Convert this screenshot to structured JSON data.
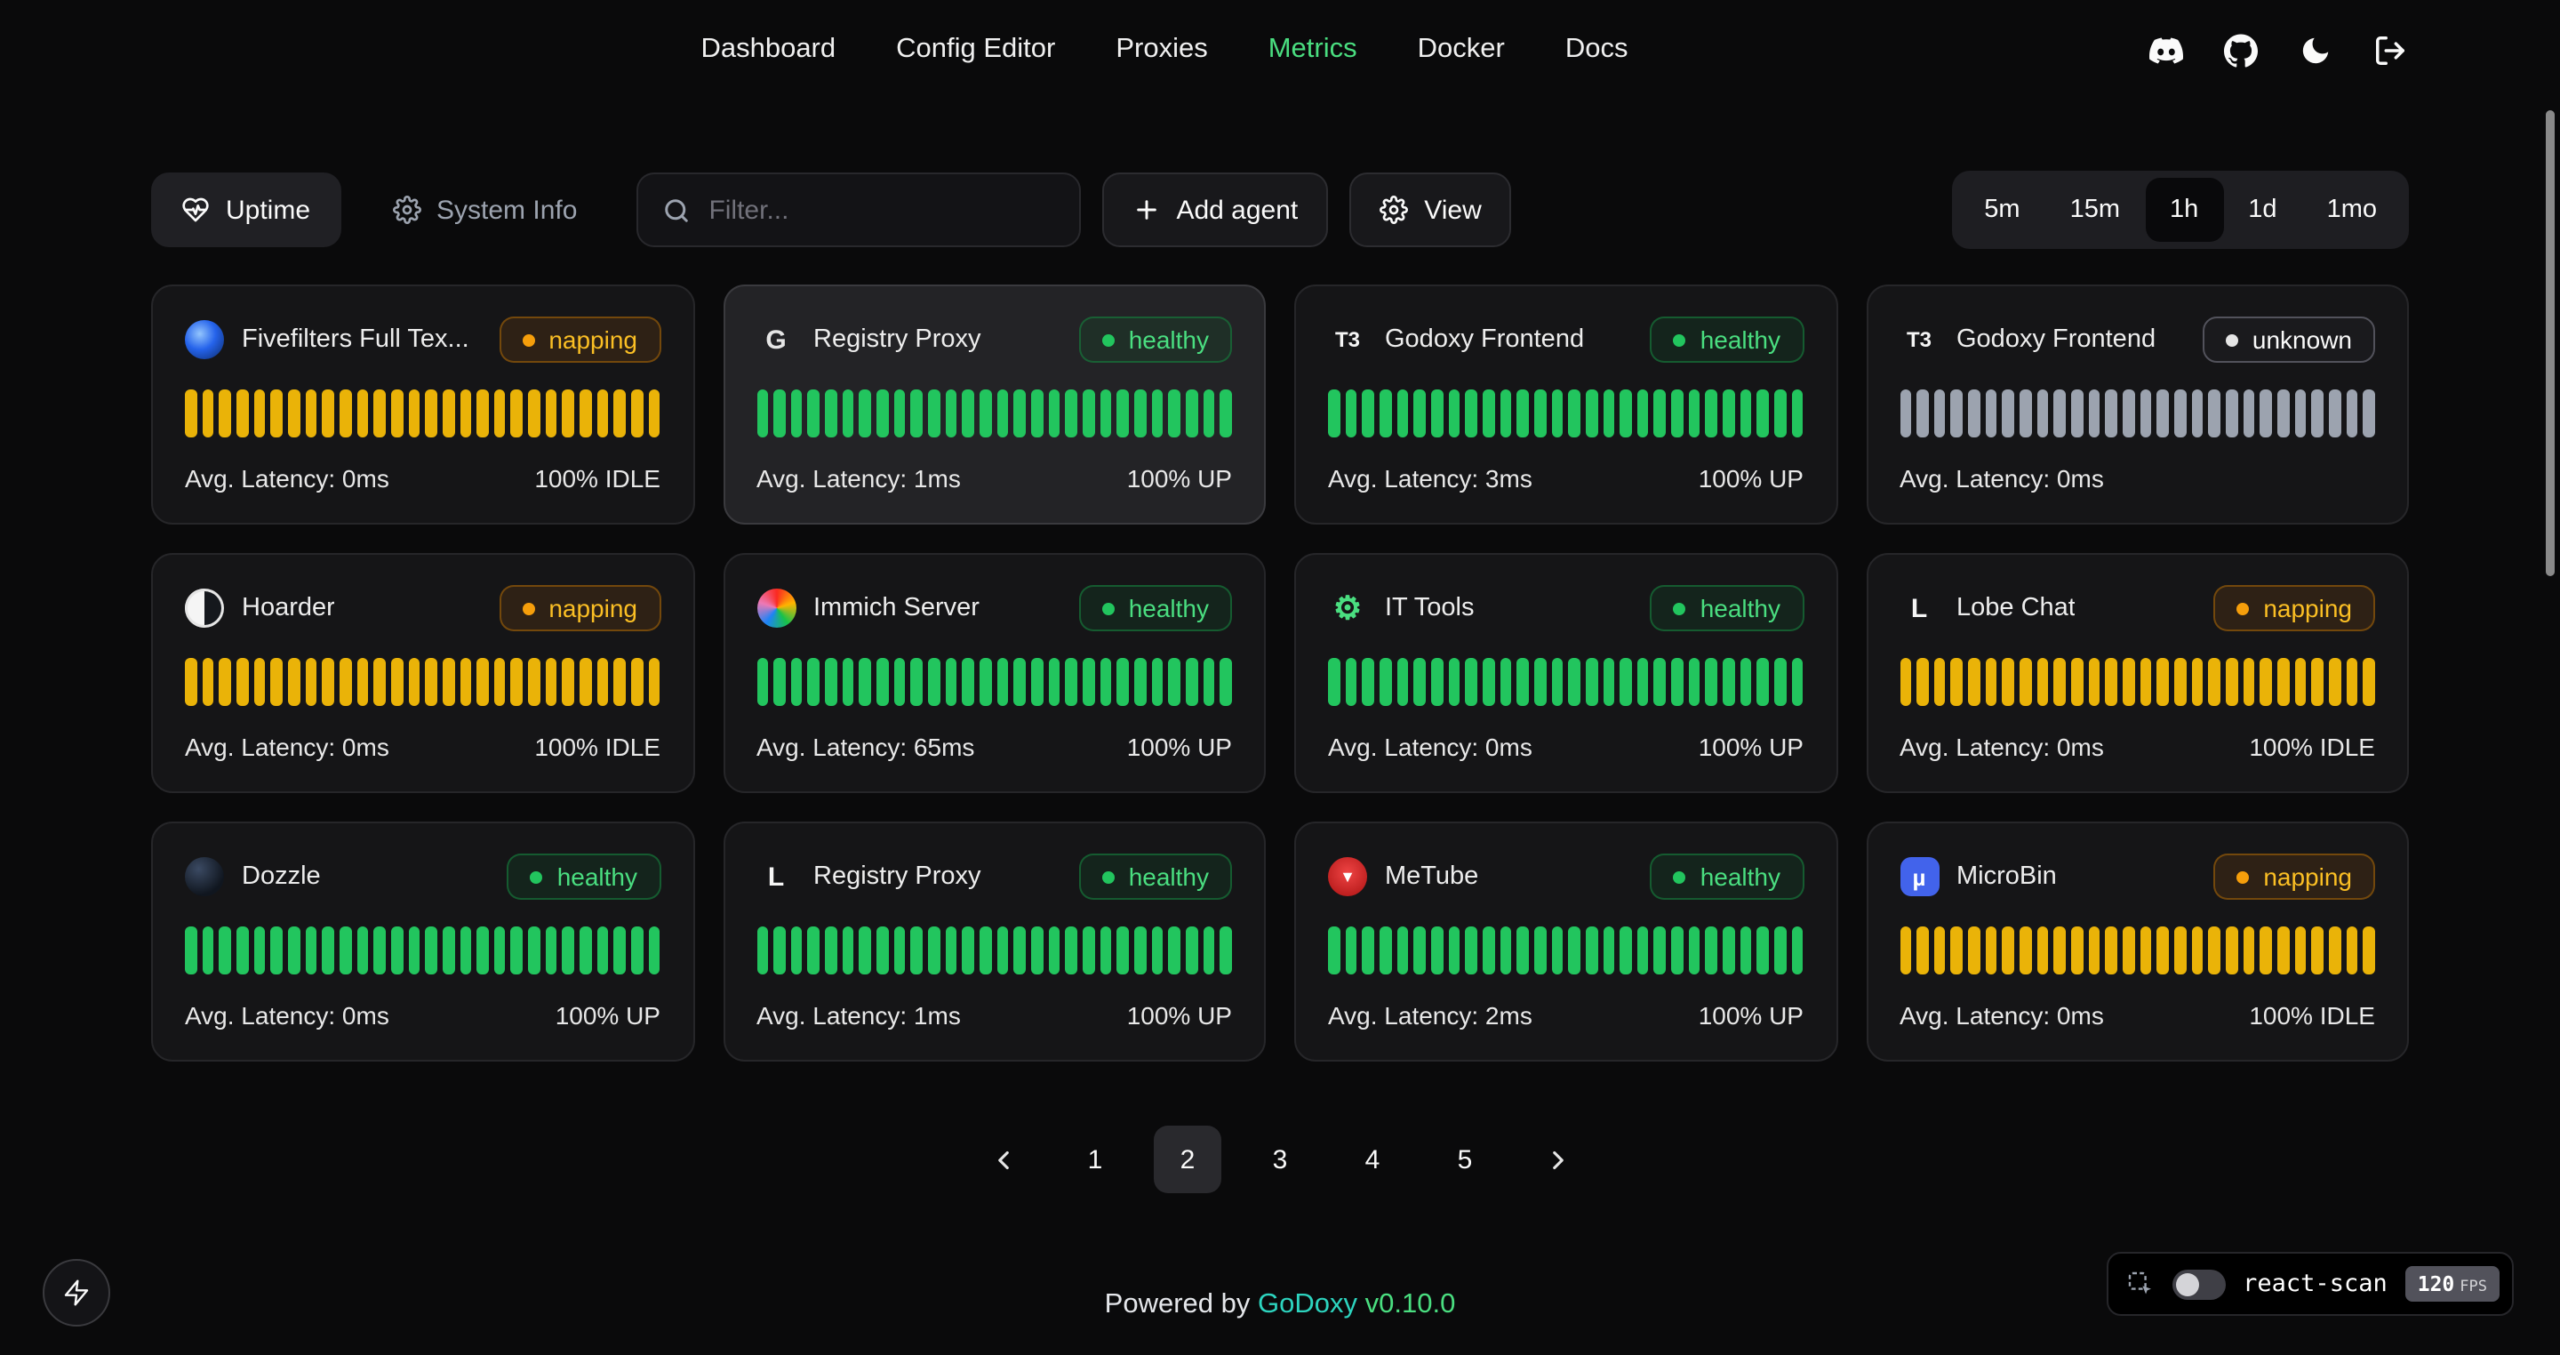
{
  "nav": {
    "links": [
      {
        "label": "Dashboard"
      },
      {
        "label": "Config Editor"
      },
      {
        "label": "Proxies"
      },
      {
        "label": "Metrics",
        "active": true
      },
      {
        "label": "Docker"
      },
      {
        "label": "Docs"
      }
    ],
    "icons": [
      "discord-icon",
      "github-icon",
      "dark-mode-icon",
      "logout-icon"
    ],
    "active_color": "#4ade80"
  },
  "toolbar": {
    "uptime_label": "Uptime",
    "system_info_label": "System Info",
    "filter_placeholder": "Filter...",
    "add_agent_label": "Add agent",
    "view_label": "View",
    "ranges": [
      {
        "label": "5m"
      },
      {
        "label": "15m"
      },
      {
        "label": "1h",
        "active": true
      },
      {
        "label": "1d"
      },
      {
        "label": "1mo"
      }
    ]
  },
  "status_colors": {
    "healthy": "#22c55e",
    "napping": "#eab308",
    "unknown": "#9ca3af"
  },
  "cards": [
    {
      "name": "Fivefilters Full Tex...",
      "status": "napping",
      "latency": "Avg. Latency: 0ms",
      "uptime": "100% IDLE",
      "bar_color": "#eab308",
      "bar_count": 28,
      "icon": {
        "name": "fivefilters-icon",
        "glyph": "",
        "bg": "radial-gradient(circle at 38% 35%, #93c5fd 0%, #2563eb 45%, #0b2a66 100%)",
        "radius": "50%"
      }
    },
    {
      "name": "Registry Proxy",
      "status": "healthy",
      "latency": "Avg. Latency: 1ms",
      "uptime": "100% UP",
      "bar_color": "#22c55e",
      "bar_count": 28,
      "highlighted": true,
      "icon": {
        "name": "registry-proxy-icon",
        "glyph": "G",
        "bg": "transparent",
        "fg": "#e5e5e5",
        "size": "15px"
      }
    },
    {
      "name": "Godoxy Frontend",
      "status": "healthy",
      "latency": "Avg. Latency: 3ms",
      "uptime": "100% UP",
      "bar_color": "#22c55e",
      "bar_count": 28,
      "icon": {
        "name": "t3-icon",
        "glyph": "T3",
        "bg": "transparent",
        "fg": "#f5f5f5",
        "size": "12px"
      }
    },
    {
      "name": "Godoxy Frontend",
      "status": "unknown",
      "latency": "Avg. Latency: 0ms",
      "uptime": "",
      "bar_color": "#9ca3af",
      "bar_count": 28,
      "icon": {
        "name": "t3-icon",
        "glyph": "T3",
        "bg": "transparent",
        "fg": "#f5f5f5",
        "size": "12px"
      }
    },
    {
      "name": "Hoarder",
      "status": "napping",
      "latency": "Avg. Latency: 0ms",
      "uptime": "100% IDLE",
      "bar_color": "#eab308",
      "bar_count": 28,
      "icon": {
        "name": "hoarder-icon",
        "glyph": "",
        "bg": "linear-gradient(90deg, #f5f5f5 0 50%, #15181d 50% 100%)",
        "radius": "50%",
        "ring": "inset 0 0 0 1.5px #e5e5e5"
      }
    },
    {
      "name": "Immich Server",
      "status": "healthy",
      "latency": "Avg. Latency: 65ms",
      "uptime": "100% UP",
      "bar_color": "#22c55e",
      "bar_count": 28,
      "icon": {
        "name": "immich-icon",
        "glyph": "",
        "bg": "conic-gradient(from 0deg, #fa2921, #ffb400, #18c249, #1e83f7, #ed79b5, #fa2921)",
        "radius": "50%"
      }
    },
    {
      "name": "IT Tools",
      "status": "healthy",
      "latency": "Avg. Latency: 0ms",
      "uptime": "100% UP",
      "bar_color": "#22c55e",
      "bar_count": 28,
      "icon": {
        "name": "it-tools-icon",
        "glyph": "⚙",
        "bg": "transparent",
        "fg": "#4ade80",
        "size": "18px"
      }
    },
    {
      "name": "Lobe Chat",
      "status": "napping",
      "latency": "Avg. Latency: 0ms",
      "uptime": "100% IDLE",
      "bar_color": "#eab308",
      "bar_count": 28,
      "icon": {
        "name": "lobe-chat-icon",
        "glyph": "L",
        "bg": "transparent",
        "fg": "#f5f5f5",
        "size": "15px"
      }
    },
    {
      "name": "Dozzle",
      "status": "healthy",
      "latency": "Avg. Latency: 0ms",
      "uptime": "100% UP",
      "bar_color": "#22c55e",
      "bar_count": 28,
      "icon": {
        "name": "dozzle-icon",
        "glyph": "",
        "bg": "radial-gradient(circle at 35% 30%, #3b4a63 0%, #10161f 70%)",
        "radius": "50%"
      }
    },
    {
      "name": "Registry Proxy",
      "status": "healthy",
      "latency": "Avg. Latency: 1ms",
      "uptime": "100% UP",
      "bar_color": "#22c55e",
      "bar_count": 28,
      "icon": {
        "name": "registry-proxy-icon",
        "glyph": "L",
        "bg": "transparent",
        "fg": "#f5f5f5",
        "size": "15px"
      }
    },
    {
      "name": "MeTube",
      "status": "healthy",
      "latency": "Avg. Latency: 2ms",
      "uptime": "100% UP",
      "bar_color": "#22c55e",
      "bar_count": 28,
      "icon": {
        "name": "metube-icon",
        "glyph": "▼",
        "bg": "radial-gradient(circle at 50% 40%, #ef4444 0%, #b91c1c 80%)",
        "fg": "#ffffff",
        "radius": "50%",
        "size": "9px"
      }
    },
    {
      "name": "MicroBin",
      "status": "napping",
      "latency": "Avg. Latency: 0ms",
      "uptime": "100% IDLE",
      "bar_color": "#eab308",
      "bar_count": 28,
      "icon": {
        "name": "microbin-icon",
        "glyph": "µ",
        "bg": "#4263eb",
        "fg": "#ffffff",
        "radius": "6px",
        "size": "13px"
      }
    }
  ],
  "pagination": {
    "pages": [
      {
        "label": "1"
      },
      {
        "label": "2",
        "active": true
      },
      {
        "label": "3"
      },
      {
        "label": "4"
      },
      {
        "label": "5"
      }
    ]
  },
  "footer": {
    "powered": "Powered by",
    "brand": "GoDoxy",
    "version": "v0.10.0"
  },
  "react_scan": {
    "label": "react-scan",
    "fps": "120",
    "fps_unit": "FPS",
    "enabled": false
  }
}
